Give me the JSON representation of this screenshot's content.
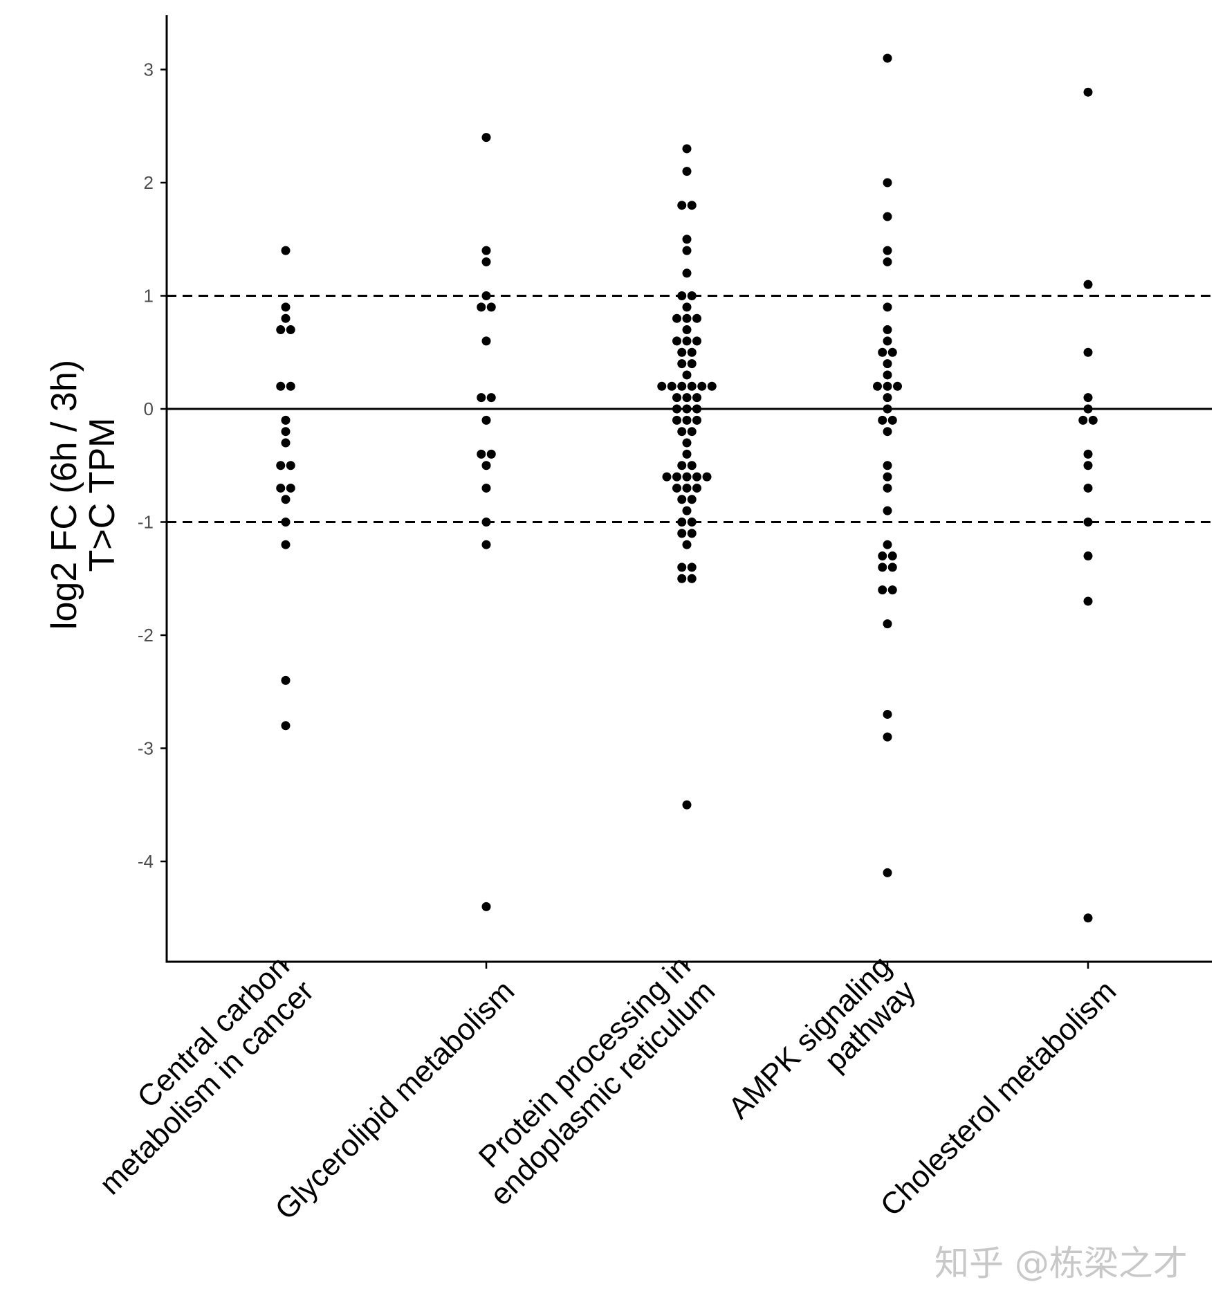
{
  "chart_data": {
    "type": "scatter",
    "subtype": "beeswarm",
    "categories": [
      [
        "Central carbon",
        "metabolism in cancer"
      ],
      [
        "Glycerolipid metabolism"
      ],
      [
        "Protein processing in",
        "endoplasmic reticulum"
      ],
      [
        "AMPK signaling",
        "pathway"
      ],
      [
        "Cholesterol metabolism"
      ]
    ],
    "ylabel": [
      "log2 FC (6h / 3h)",
      "T>C TPM"
    ],
    "xlabel": "",
    "ylim": [
      -4.7,
      3.48
    ],
    "yticks": [
      3,
      2,
      1,
      0,
      -1,
      -2,
      -3,
      -4
    ],
    "ytick_labels": [
      "3",
      "2",
      "1",
      "0",
      "-1",
      "-2",
      "-3",
      "-4"
    ],
    "reference_lines": [
      {
        "y": 1,
        "style": "dashed"
      },
      {
        "y": 0,
        "style": "solid"
      },
      {
        "y": -1,
        "style": "dashed"
      }
    ],
    "grid": false,
    "point_color": "#000000",
    "series": [
      {
        "values": [
          1.4,
          0.9,
          0.8,
          0.7,
          0.7,
          0.2,
          0.2,
          -0.1,
          -0.2,
          -0.3,
          -0.5,
          -0.5,
          -0.7,
          -0.7,
          -0.8,
          -1.0,
          -1.2,
          -2.4,
          -2.8
        ]
      },
      {
        "values": [
          2.4,
          1.4,
          1.3,
          1.0,
          0.9,
          0.9,
          0.6,
          0.1,
          0.1,
          -0.1,
          -0.4,
          -0.4,
          -0.5,
          -0.7,
          -1.0,
          -1.2,
          -4.4
        ]
      },
      {
        "values": [
          2.3,
          2.1,
          1.8,
          1.8,
          1.5,
          1.4,
          1.2,
          1.0,
          1.0,
          0.9,
          0.8,
          0.8,
          0.8,
          0.7,
          0.6,
          0.6,
          0.6,
          0.5,
          0.5,
          0.4,
          0.4,
          0.3,
          0.2,
          0.2,
          0.2,
          0.2,
          0.2,
          0.2,
          0.1,
          0.1,
          0.1,
          0.0,
          0.0,
          0.0,
          -0.1,
          -0.1,
          -0.1,
          -0.2,
          -0.2,
          -0.3,
          -0.4,
          -0.5,
          -0.5,
          -0.6,
          -0.6,
          -0.6,
          -0.6,
          -0.6,
          -0.7,
          -0.7,
          -0.7,
          -0.8,
          -0.8,
          -0.9,
          -1.0,
          -1.0,
          -1.1,
          -1.1,
          -1.2,
          -1.4,
          -1.4,
          -1.5,
          -1.5,
          -3.5
        ]
      },
      {
        "values": [
          3.1,
          2.0,
          1.7,
          1.4,
          1.3,
          0.9,
          0.7,
          0.6,
          0.5,
          0.5,
          0.4,
          0.3,
          0.2,
          0.2,
          0.2,
          0.1,
          0.0,
          -0.1,
          -0.1,
          -0.2,
          -0.5,
          -0.6,
          -0.7,
          -0.9,
          -1.2,
          -1.3,
          -1.3,
          -1.4,
          -1.4,
          -1.6,
          -1.6,
          -1.9,
          -2.7,
          -2.9,
          -4.1
        ]
      },
      {
        "values": [
          2.8,
          1.1,
          0.5,
          0.1,
          0.0,
          -0.1,
          -0.1,
          -0.4,
          -0.5,
          -0.7,
          -1.0,
          -1.3,
          -1.7,
          -4.5
        ]
      }
    ]
  },
  "watermark": "知乎 @栋梁之才"
}
